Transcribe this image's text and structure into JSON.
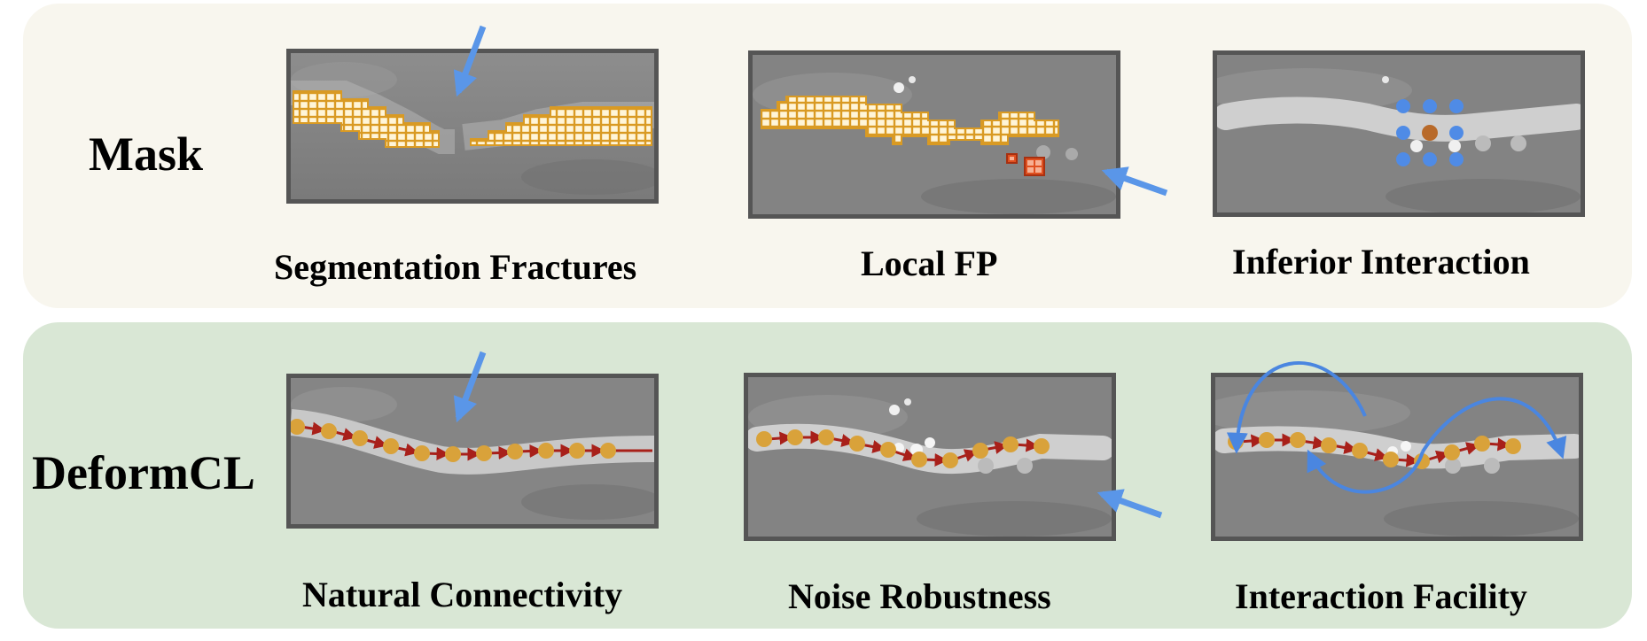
{
  "rows": {
    "mask": {
      "label": "Mask",
      "panels": [
        {
          "caption": "Segmentation Fractures"
        },
        {
          "caption": "Local FP"
        },
        {
          "caption": "Inferior Interaction"
        }
      ]
    },
    "deformcl": {
      "label": "DeformCL",
      "panels": [
        {
          "caption": "Natural Connectivity"
        },
        {
          "caption": "Noise Robustness"
        },
        {
          "caption": "Interaction Facility"
        }
      ]
    }
  },
  "colors": {
    "mask_bg": "#f8f6ee",
    "deformcl_bg": "#d9e7d5",
    "mask_fill": "#f2c04e",
    "mask_outline": "#d99a23",
    "fp_red": "#e05020",
    "point": "#d9a23a",
    "arrow_red": "#a8201a",
    "annot_blue": "#5a96e8",
    "click_brown": "#b86a2a"
  }
}
